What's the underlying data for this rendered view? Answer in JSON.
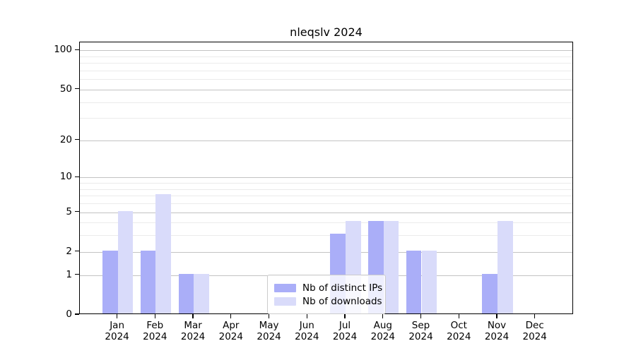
{
  "chart_data": {
    "type": "bar",
    "title": "nleqslv 2024",
    "categories": [
      "Jan",
      "Feb",
      "Mar",
      "Apr",
      "May",
      "Jun",
      "Jul",
      "Aug",
      "Sep",
      "Oct",
      "Nov",
      "Dec"
    ],
    "x_year": "2024",
    "series": [
      {
        "name": "Nb of distinct IPs",
        "color": "#aaaef8",
        "values": [
          2,
          2,
          1,
          0,
          0,
          0,
          3,
          4,
          2,
          0,
          1,
          0
        ]
      },
      {
        "name": "Nb of downloads",
        "color": "#d9dbfa",
        "values": [
          5,
          7,
          1,
          0,
          0,
          0,
          4,
          4,
          2,
          0,
          4,
          0
        ]
      }
    ],
    "xlabel": "",
    "ylabel": "",
    "yscale": "log10(1+x)",
    "yticks": [
      0,
      1,
      2,
      5,
      10,
      20,
      50,
      100
    ],
    "minor_gridlines": [
      3,
      4,
      6,
      7,
      8,
      9,
      30,
      40,
      60,
      70,
      80,
      90
    ],
    "ylim": [
      0,
      115
    ],
    "grid": "horizontal",
    "legend_position": "inside-bottom-center",
    "colors": {
      "axis": "#000000",
      "major_grid": "#c3c3c3",
      "minor_grid": "#ebebeb",
      "legend_border": "#cccccc"
    }
  }
}
